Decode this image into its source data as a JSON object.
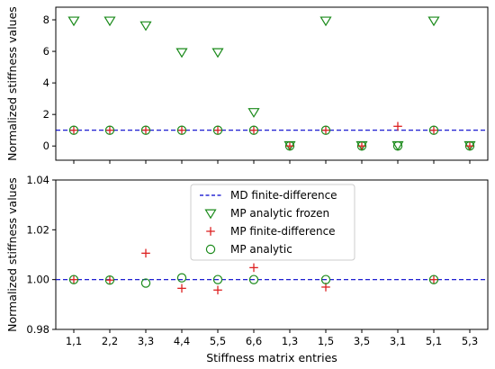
{
  "chart_data": [
    {
      "type": "scatter",
      "xlabel": "",
      "ylabel": "Normalized stiffness values",
      "ylim": [
        -0.9,
        8.8
      ],
      "yticks": [
        0,
        2,
        4,
        6,
        8
      ],
      "ytick_labels": [
        "0",
        "2",
        "4",
        "6",
        "8"
      ],
      "categories": [
        "1,1",
        "2,2",
        "3,3",
        "4,4",
        "5,5",
        "6,6",
        "1,3",
        "1,5",
        "3,5",
        "3,1",
        "5,1",
        "5,3"
      ],
      "grid": false,
      "legend": false,
      "reference_line": {
        "y": 1.0,
        "style": "dashed",
        "color": "#0000cc"
      },
      "series": [
        {
          "marker": "triangle-down",
          "color": "#1a8a1a",
          "values": [
            7.95,
            7.95,
            7.65,
            5.95,
            5.95,
            2.15,
            0.05,
            7.95,
            0.05,
            0.05,
            7.95,
            0.05
          ]
        },
        {
          "marker": "plus",
          "color": "#dd2222",
          "values": [
            1.0,
            1.0,
            1.01,
            1.0,
            1.0,
            1.0,
            0.0,
            1.0,
            0.0,
            1.25,
            1.0,
            0.0
          ]
        },
        {
          "marker": "circle",
          "color": "#1a8a1a",
          "values": [
            1.0,
            1.0,
            1.0,
            1.0,
            1.0,
            1.0,
            0.0,
            1.0,
            0.0,
            0.0,
            1.0,
            0.0
          ]
        }
      ]
    },
    {
      "type": "scatter",
      "xlabel": "Stiffness matrix entries",
      "ylabel": "Normalized stiffness values",
      "ylim": [
        0.98,
        1.04
      ],
      "yticks": [
        0.98,
        1.0,
        1.02,
        1.04
      ],
      "ytick_labels": [
        "0.98",
        "1.00",
        "1.02",
        "1.04"
      ],
      "categories": [
        "1,1",
        "2,2",
        "3,3",
        "4,4",
        "5,5",
        "6,6",
        "1,3",
        "1,5",
        "3,5",
        "3,1",
        "5,1",
        "5,3"
      ],
      "grid": false,
      "legend": "upper-center",
      "series": [
        {
          "name": "MD finite-difference",
          "marker": "dashed-line",
          "color": "#0000cc",
          "y": 1.0
        },
        {
          "name": "MP analytic frozen",
          "marker": "triangle-down",
          "color": "#1a8a1a",
          "values": []
        },
        {
          "name": "MP finite-difference",
          "marker": "plus",
          "color": "#dd2222",
          "values": [
            1.0,
            0.9998,
            1.0106,
            0.9965,
            0.9958,
            1.0048,
            null,
            0.997,
            null,
            null,
            1.0,
            null
          ]
        },
        {
          "name": "MP analytic",
          "marker": "circle",
          "color": "#1a8a1a",
          "values": [
            1.0,
            0.9998,
            0.9986,
            1.0007,
            1.0,
            1.0,
            null,
            1.0,
            null,
            null,
            1.0,
            null
          ]
        }
      ]
    }
  ]
}
